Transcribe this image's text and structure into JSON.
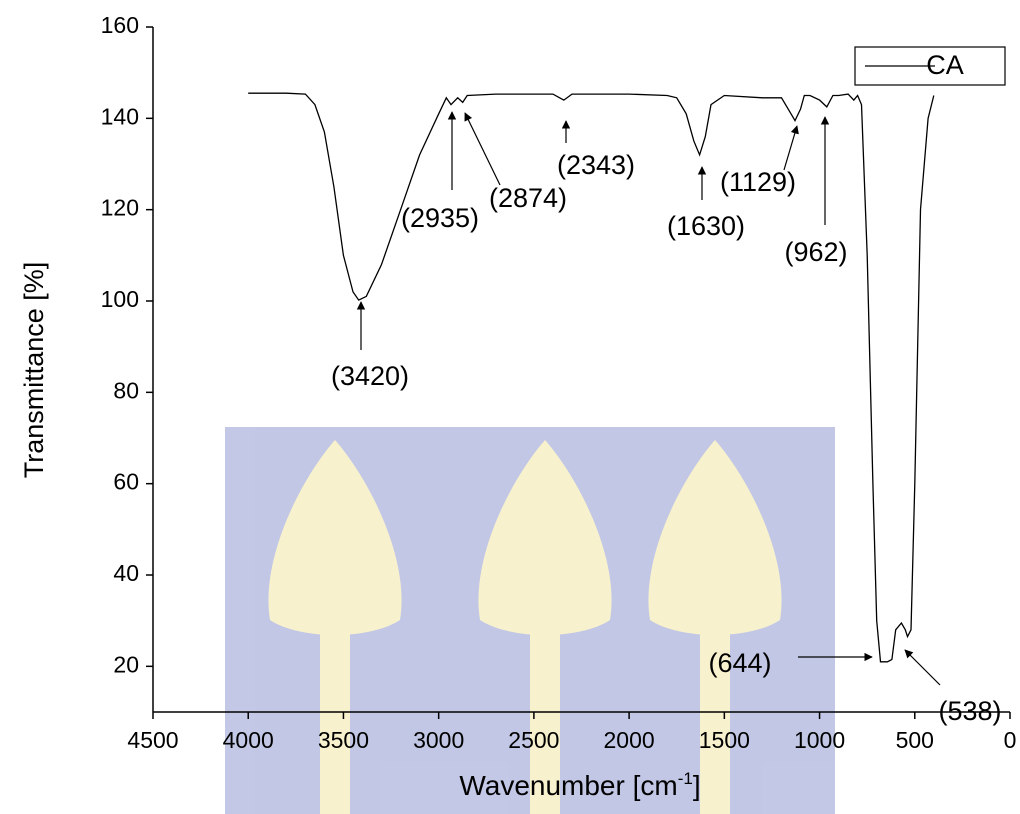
{
  "chart_data": {
    "type": "line",
    "ylabel": "Transmittance [%]",
    "xlabel": [
      "Wavenumber [cm",
      "-1",
      "]"
    ],
    "xlim": [
      4500,
      0
    ],
    "ylim": [
      10,
      160
    ],
    "xticks": [
      4500,
      4000,
      3500,
      3000,
      2500,
      2000,
      1500,
      1000,
      500,
      0
    ],
    "yticks": [
      20,
      40,
      60,
      80,
      100,
      120,
      140,
      160
    ],
    "legend": "top-right",
    "series": [
      {
        "name": "CA",
        "color": "#000000",
        "x": [
          4000,
          3800,
          3700,
          3650,
          3600,
          3550,
          3500,
          3450,
          3420,
          3380,
          3300,
          3200,
          3100,
          3000,
          2960,
          2935,
          2900,
          2874,
          2850,
          2700,
          2400,
          2343,
          2300,
          2000,
          1800,
          1750,
          1700,
          1660,
          1630,
          1600,
          1570,
          1500,
          1300,
          1200,
          1150,
          1129,
          1100,
          1080,
          1050,
          1000,
          962,
          930,
          900,
          850,
          820,
          800,
          780,
          750,
          720,
          700,
          680,
          644,
          620,
          600,
          570,
          550,
          538,
          520,
          500,
          470,
          430,
          400
        ],
        "values": [
          145.5,
          145.5,
          145.3,
          143,
          137,
          125,
          110,
          102,
          100.2,
          101,
          108,
          120,
          132,
          141,
          144.5,
          143,
          144.5,
          143.5,
          145,
          145.3,
          145.3,
          144,
          145.3,
          145.3,
          145,
          144.5,
          141,
          135,
          132,
          136,
          143,
          145,
          144.5,
          144.5,
          141,
          139.5,
          142,
          145,
          145,
          144,
          142.5,
          145,
          145,
          145.3,
          144,
          145,
          143,
          110,
          60,
          30,
          21,
          21,
          21.5,
          28,
          29.5,
          28,
          26.5,
          28,
          60,
          120,
          140,
          145
        ]
      }
    ],
    "annotations": [
      "(3420)",
      "(2935)",
      "(2874)",
      "(2343)",
      "(1630)",
      "(1129)",
      "(962)",
      "(644)",
      "(538)"
    ]
  }
}
